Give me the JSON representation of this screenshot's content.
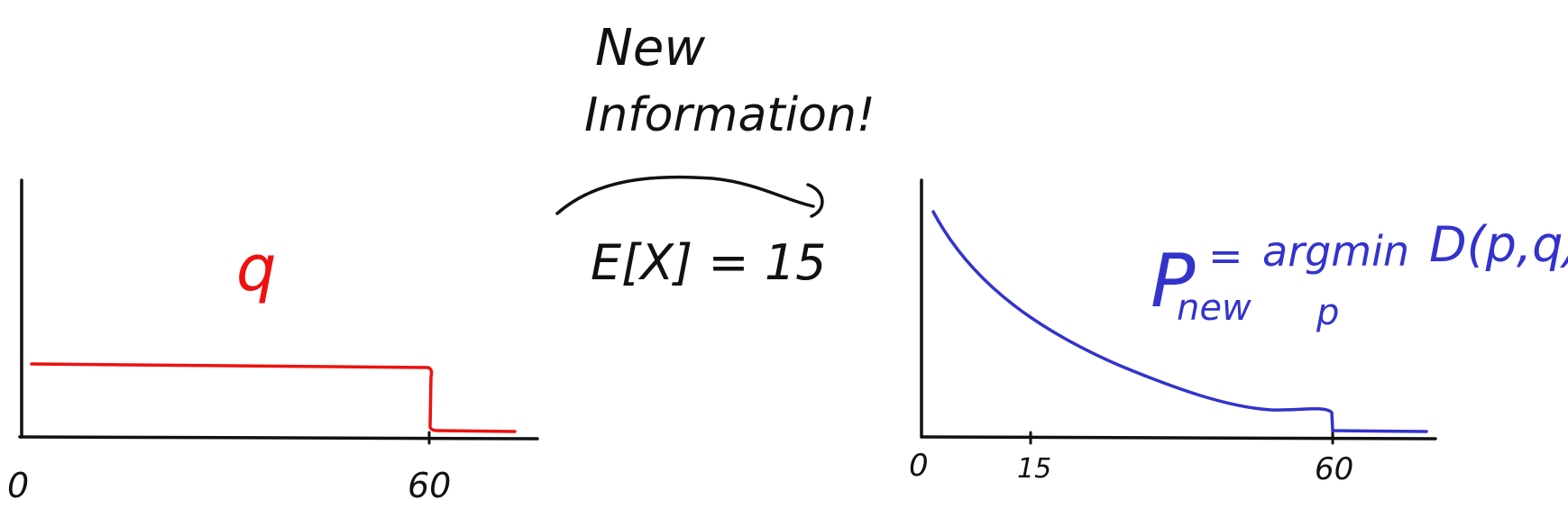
{
  "left_plot": {
    "prior_label": "q",
    "tick_zero": "0",
    "tick_sixty": "60"
  },
  "middle": {
    "line1": "New",
    "line2": "Information!",
    "constraint": "E[X] = 15"
  },
  "right_plot": {
    "tick_zero": "0",
    "tick_fifteen": "15",
    "tick_sixty": "60",
    "formula_p": "P",
    "formula_sub": "new",
    "formula_eq": "=",
    "formula_argmin": "argmin",
    "formula_argmin_sub": "p",
    "formula_div": "D(p,q)"
  },
  "colors": {
    "ink": "#111111",
    "prior": "#ee1111",
    "posterior": "#3333cc"
  }
}
